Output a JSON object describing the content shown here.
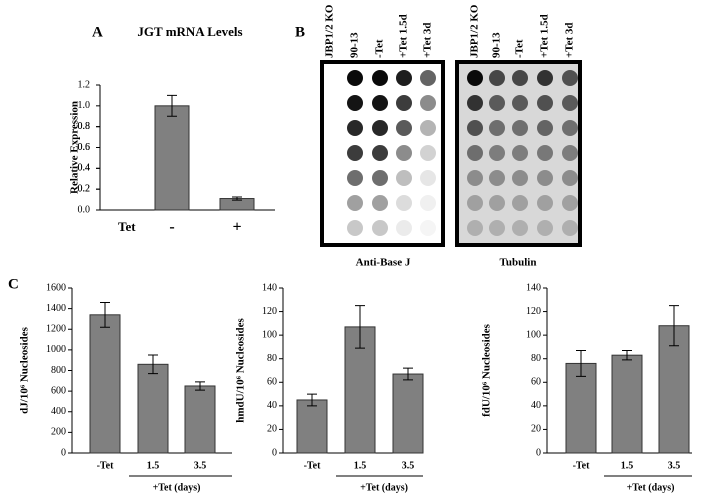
{
  "chart_data": [
    {
      "type": "bar",
      "panel": "A",
      "title": "JGT mRNA Levels",
      "ylabel": "Relative Expression",
      "xlabel": "Tet",
      "categories": [
        "-",
        "+"
      ],
      "values": [
        1.0,
        0.11
      ],
      "errors": [
        0.1,
        0.015
      ],
      "color": "#808080",
      "ylim": [
        0,
        1.2
      ],
      "yticks": [
        {
          "value": 0,
          "label": "0.0"
        },
        0.2,
        0.4,
        0.6,
        0.8,
        {
          "value": 1,
          "label": "1.0"
        },
        0.2,
        0.4,
        0.6,
        0.8,
        {
          "value": 1.2,
          "label": "1.2"
        }
      ]
    },
    {
      "type": "bar",
      "panel": "C",
      "ylabel": "dJ/10⁶ Nucleosides",
      "group_label": "+Tet (days)",
      "categories": [
        "-Tet",
        "1.5",
        "3.5"
      ],
      "values": [
        1340,
        860,
        650
      ],
      "errors": [
        120,
        90,
        40
      ],
      "color": "#808080",
      "ylim": [
        0,
        1600
      ],
      "yticks": [
        0,
        200,
        400,
        600,
        800,
        1000,
        1200,
        1400,
        1600
      ]
    },
    {
      "type": "bar",
      "ylabel": "hmdU/10⁶ Nucleosides",
      "group_label": "+Tet (days)",
      "categories": [
        "-Tet",
        "1.5",
        "3.5"
      ],
      "values": [
        45,
        107,
        67
      ],
      "errors": [
        5,
        18,
        5
      ],
      "color": "#808080",
      "ylim": [
        0,
        140
      ],
      "yticks": [
        0,
        20,
        40,
        60,
        80,
        100,
        120,
        140
      ]
    },
    {
      "type": "bar",
      "ylabel": "fdU/10⁶ Nucleosides",
      "group_label": "+Tet (days)",
      "categories": [
        "-Tet",
        "1.5",
        "3.5"
      ],
      "values": [
        76,
        83,
        108
      ],
      "errors": [
        11,
        4,
        17
      ],
      "color": "#808080",
      "ylim": [
        0,
        140
      ],
      "yticks": [
        0,
        20,
        40,
        60,
        80,
        100,
        120,
        140
      ]
    }
  ],
  "blot_panel": {
    "panel": "B",
    "lanes": [
      "JBP1/2 KO",
      "90-13",
      "-Tet",
      "+Tet 1.5d",
      "+Tet 3d"
    ],
    "captions": [
      "Anti-Base J",
      "Tubulin"
    ]
  }
}
